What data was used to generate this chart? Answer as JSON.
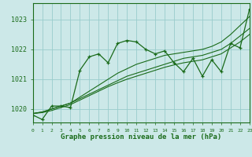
{
  "title": "Graphe pression niveau de la mer (hPa)",
  "xlabel_ticks": [
    "0",
    "1",
    "2",
    "3",
    "4",
    "5",
    "6",
    "7",
    "8",
    "9",
    "10",
    "11",
    "12",
    "13",
    "14",
    "15",
    "16",
    "17",
    "18",
    "19",
    "20",
    "21",
    "22",
    "23"
  ],
  "yticks": [
    1020,
    1021,
    1022,
    1023
  ],
  "ylim": [
    1019.55,
    1023.55
  ],
  "xlim": [
    0,
    23
  ],
  "background_color": "#cce8e8",
  "grid_color": "#99cccc",
  "line_color": "#1a6b1a",
  "border_color": "#1a6b1a",
  "title_color": "#1a6b1a",
  "zigzag": [
    1019.8,
    1019.65,
    1020.1,
    1020.1,
    1020.05,
    1021.3,
    1021.75,
    1021.85,
    1021.55,
    1022.2,
    1022.3,
    1022.25,
    1022.0,
    1021.85,
    1021.95,
    1021.55,
    1021.25,
    1021.7,
    1021.1,
    1021.65,
    1021.25,
    1022.2,
    1022.05,
    1023.35
  ],
  "trend1": [
    1019.85,
    1019.9,
    1020.0,
    1020.1,
    1020.2,
    1020.35,
    1020.5,
    1020.65,
    1020.8,
    1020.95,
    1021.1,
    1021.2,
    1021.3,
    1021.4,
    1021.5,
    1021.6,
    1021.7,
    1021.75,
    1021.8,
    1021.9,
    1022.0,
    1022.2,
    1022.45,
    1022.7
  ],
  "trend2": [
    1019.85,
    1019.9,
    1020.0,
    1020.1,
    1020.2,
    1020.4,
    1020.6,
    1020.8,
    1021.0,
    1021.2,
    1021.35,
    1021.5,
    1021.6,
    1021.7,
    1021.8,
    1021.85,
    1021.9,
    1021.95,
    1022.0,
    1022.1,
    1022.25,
    1022.5,
    1022.8,
    1023.1
  ],
  "trend3": [
    1019.85,
    1019.88,
    1019.95,
    1020.05,
    1020.15,
    1020.3,
    1020.45,
    1020.6,
    1020.75,
    1020.88,
    1021.0,
    1021.1,
    1021.2,
    1021.3,
    1021.4,
    1021.48,
    1021.55,
    1021.6,
    1021.65,
    1021.75,
    1021.85,
    1022.05,
    1022.25,
    1022.5
  ]
}
